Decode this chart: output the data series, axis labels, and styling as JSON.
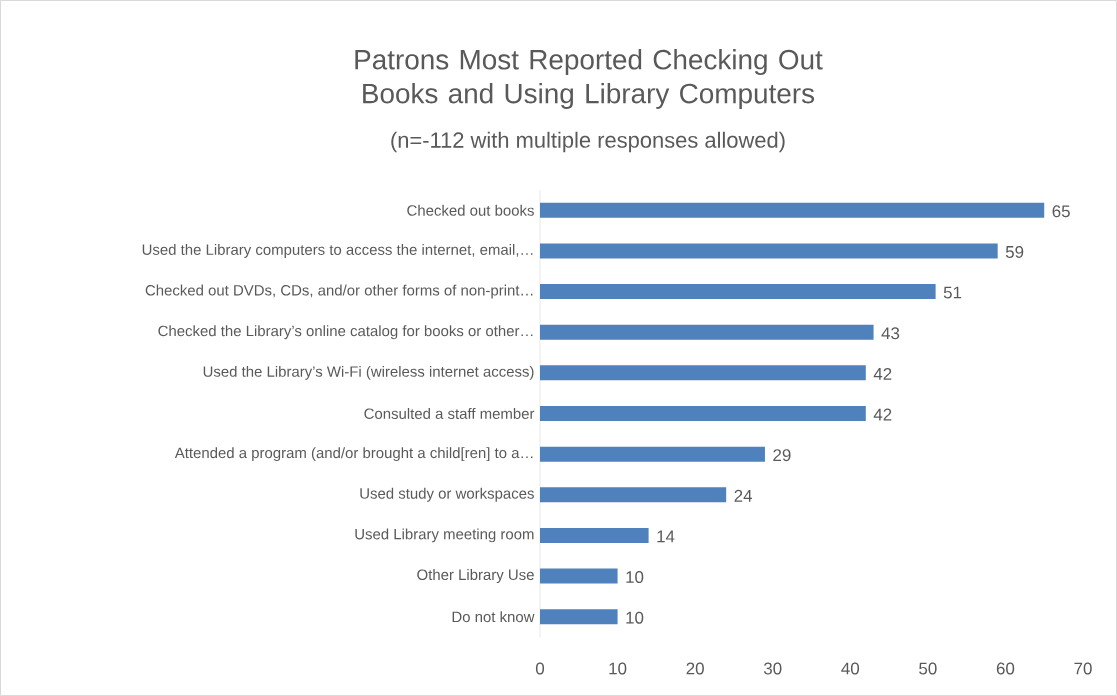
{
  "chart_data": {
    "type": "bar",
    "orientation": "horizontal",
    "title": "Patrons Most Reported Checking Out Books and Using Library Computers",
    "subtitle": "(n=-112 with multiple responses allowed)",
    "categories": [
      "Checked out books",
      "Used the Library computers to access the internet, email,…",
      "Checked out DVDs, CDs, and/or other forms of non-print…",
      "Checked the Library’s online catalog for books or other…",
      "Used the Library’s Wi-Fi (wireless internet access)",
      "Consulted a staff member",
      "Attended a program (and/or brought a child[ren] to a…",
      "Used study or workspaces",
      "Used Library meeting room",
      "Other Library Use",
      "Do not know"
    ],
    "values": [
      65,
      59,
      51,
      43,
      42,
      42,
      29,
      24,
      14,
      10,
      10
    ],
    "color": "#4f81bd",
    "xlim": [
      0,
      70
    ],
    "xticks": [
      0,
      10,
      20,
      30,
      40,
      50,
      60,
      70
    ],
    "grid": false,
    "data_labels": true
  }
}
